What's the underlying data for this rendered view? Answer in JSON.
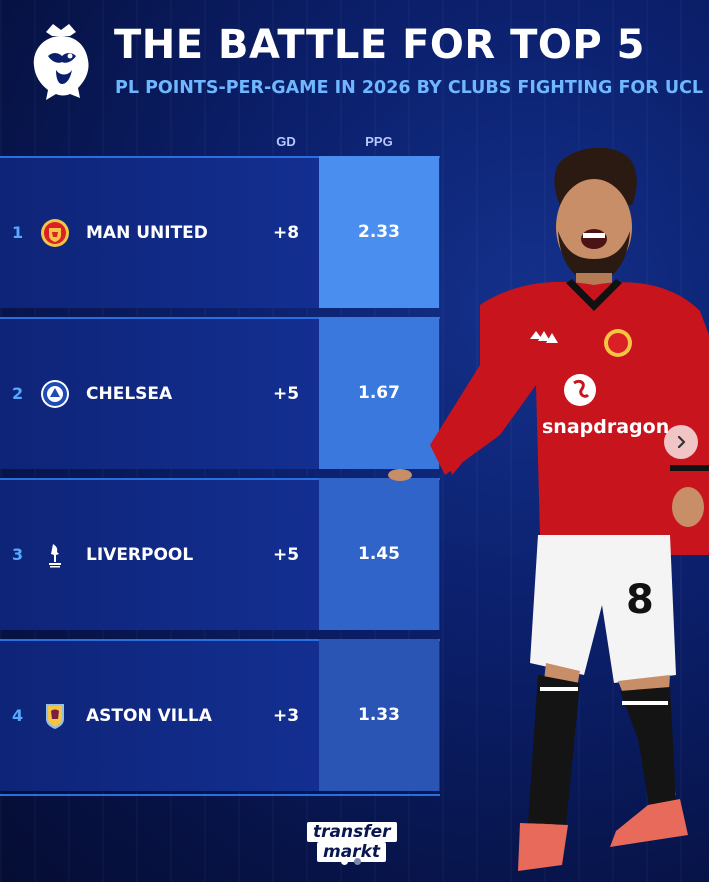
{
  "header": {
    "title": "THE BATTLE FOR TOP 5",
    "subtitle": "PL POINTS-PER-GAME IN 2026 BY CLUBS FIGHTING FOR UCL"
  },
  "columns": {
    "gd": "GD",
    "ppg": "PPG"
  },
  "rows": [
    {
      "rank": "1",
      "club": "MAN UNITED",
      "gd": "+8",
      "ppg": "2.33",
      "crest": "man-united-crest-icon",
      "ppg_color": "#4a8ff0"
    },
    {
      "rank": "2",
      "club": "CHELSEA",
      "gd": "+5",
      "ppg": "1.67",
      "crest": "chelsea-crest-icon",
      "ppg_color": "#3a78dd"
    },
    {
      "rank": "3",
      "club": "LIVERPOOL",
      "gd": "+5",
      "ppg": "1.45",
      "crest": "liverpool-crest-icon",
      "ppg_color": "#3164c8"
    },
    {
      "rank": "4",
      "club": "ASTON VILLA",
      "gd": "+3",
      "ppg": "1.33",
      "crest": "aston-villa-crest-icon",
      "ppg_color": "#2a55b4"
    }
  ],
  "player": {
    "shirt_sponsor": "snapdragon",
    "shirt_number": "8"
  },
  "footer": {
    "logo_top": "transfer",
    "logo_bottom": "markt"
  },
  "colors": {
    "accent": "#6fb8ff",
    "rank": "#57a8ff",
    "background": "#0b1f6b"
  }
}
